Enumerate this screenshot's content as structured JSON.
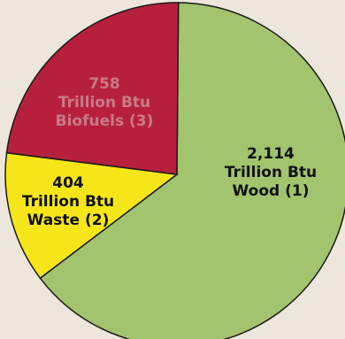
{
  "chart_data": {
    "type": "pie",
    "units": "Trillion Btu",
    "slices": [
      {
        "value_text": "2,114",
        "unit": "Trillion Btu",
        "label": "Wood (1)",
        "value": 2114,
        "color": "#a2c46e",
        "label_color": "#111111"
      },
      {
        "value_text": "404",
        "unit": "Trillion Btu",
        "label": "Waste (2)",
        "value": 404,
        "color": "#f6e619",
        "label_color": "#111111"
      },
      {
        "value_text": "758",
        "unit": "Trillion Btu",
        "label": "Biofuels (3)",
        "value": 758,
        "color": "#b7203d",
        "label_color": "#c97a86"
      }
    ]
  }
}
